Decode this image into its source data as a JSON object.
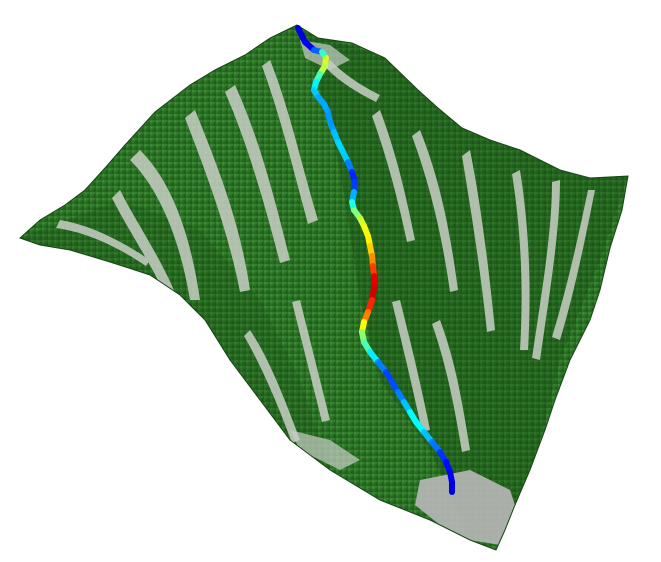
{
  "scene": {
    "subject": "3d-terrain-with-track",
    "background_color": "#ffffff",
    "terrain_colors": {
      "forest_dark": "#1f5f1c",
      "forest_mid": "#2f7a2a",
      "forest_light": "#4e9a3e",
      "clearing": "#c9cfc6",
      "rock": "#b8b8b8",
      "shadow": "#174a15"
    },
    "track": {
      "colormap": "jet",
      "colormap_stops": [
        "#00008f",
        "#0000ff",
        "#0080ff",
        "#00ffff",
        "#80ff80",
        "#ffff00",
        "#ff8000",
        "#ff0000",
        "#800000"
      ]
    }
  }
}
